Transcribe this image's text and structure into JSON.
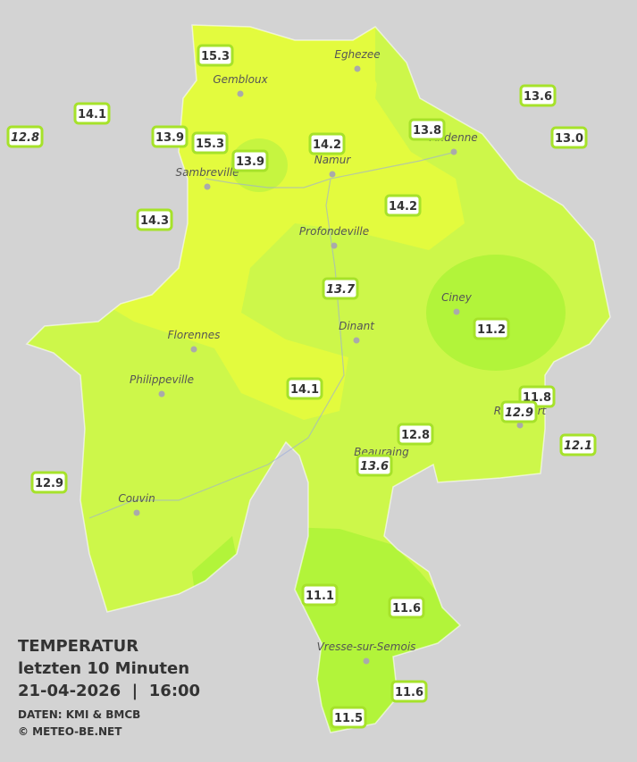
{
  "legend": {
    "title": "TEMPERATUR",
    "period": "letzten 10 Minuten",
    "datetime": "21-04-2026  |  16:00",
    "source": "DATEN: KMI & BMCB",
    "copyright": "© METEO-BE.NET"
  },
  "cities": [
    "Eghezee",
    "Gembloux",
    "Andenne",
    "Namur",
    "Sambreville",
    "Profondeville",
    "Ciney",
    "Dinant",
    "Florennes",
    "Philippeville",
    "Rochefort",
    "Beauraing",
    "Couvin",
    "Vresse-sur-Semois"
  ],
  "stations": [
    {
      "label": "15.3",
      "italic": false
    },
    {
      "label": "14.1",
      "italic": false
    },
    {
      "label": "12.8",
      "italic": true
    },
    {
      "label": "13.9",
      "italic": false
    },
    {
      "label": "15.3",
      "italic": false
    },
    {
      "label": "13.9",
      "italic": false
    },
    {
      "label": "14.2",
      "italic": false
    },
    {
      "label": "13.8",
      "italic": false
    },
    {
      "label": "13.6",
      "italic": false
    },
    {
      "label": "13.0",
      "italic": false
    },
    {
      "label": "14.3",
      "italic": false
    },
    {
      "label": "14.2",
      "italic": false
    },
    {
      "label": "13.7",
      "italic": true
    },
    {
      "label": "11.2",
      "italic": false
    },
    {
      "label": "14.1",
      "italic": false
    },
    {
      "label": "11.8",
      "italic": false
    },
    {
      "label": "12.9",
      "italic": true
    },
    {
      "label": "12.8",
      "italic": false
    },
    {
      "label": "12.1",
      "italic": true
    },
    {
      "label": "13.6",
      "italic": true
    },
    {
      "label": "12.9",
      "italic": false
    },
    {
      "label": "11.1",
      "italic": false
    },
    {
      "label": "11.6",
      "italic": false
    },
    {
      "label": "11.6",
      "italic": false
    },
    {
      "label": "11.5",
      "italic": false
    }
  ]
}
